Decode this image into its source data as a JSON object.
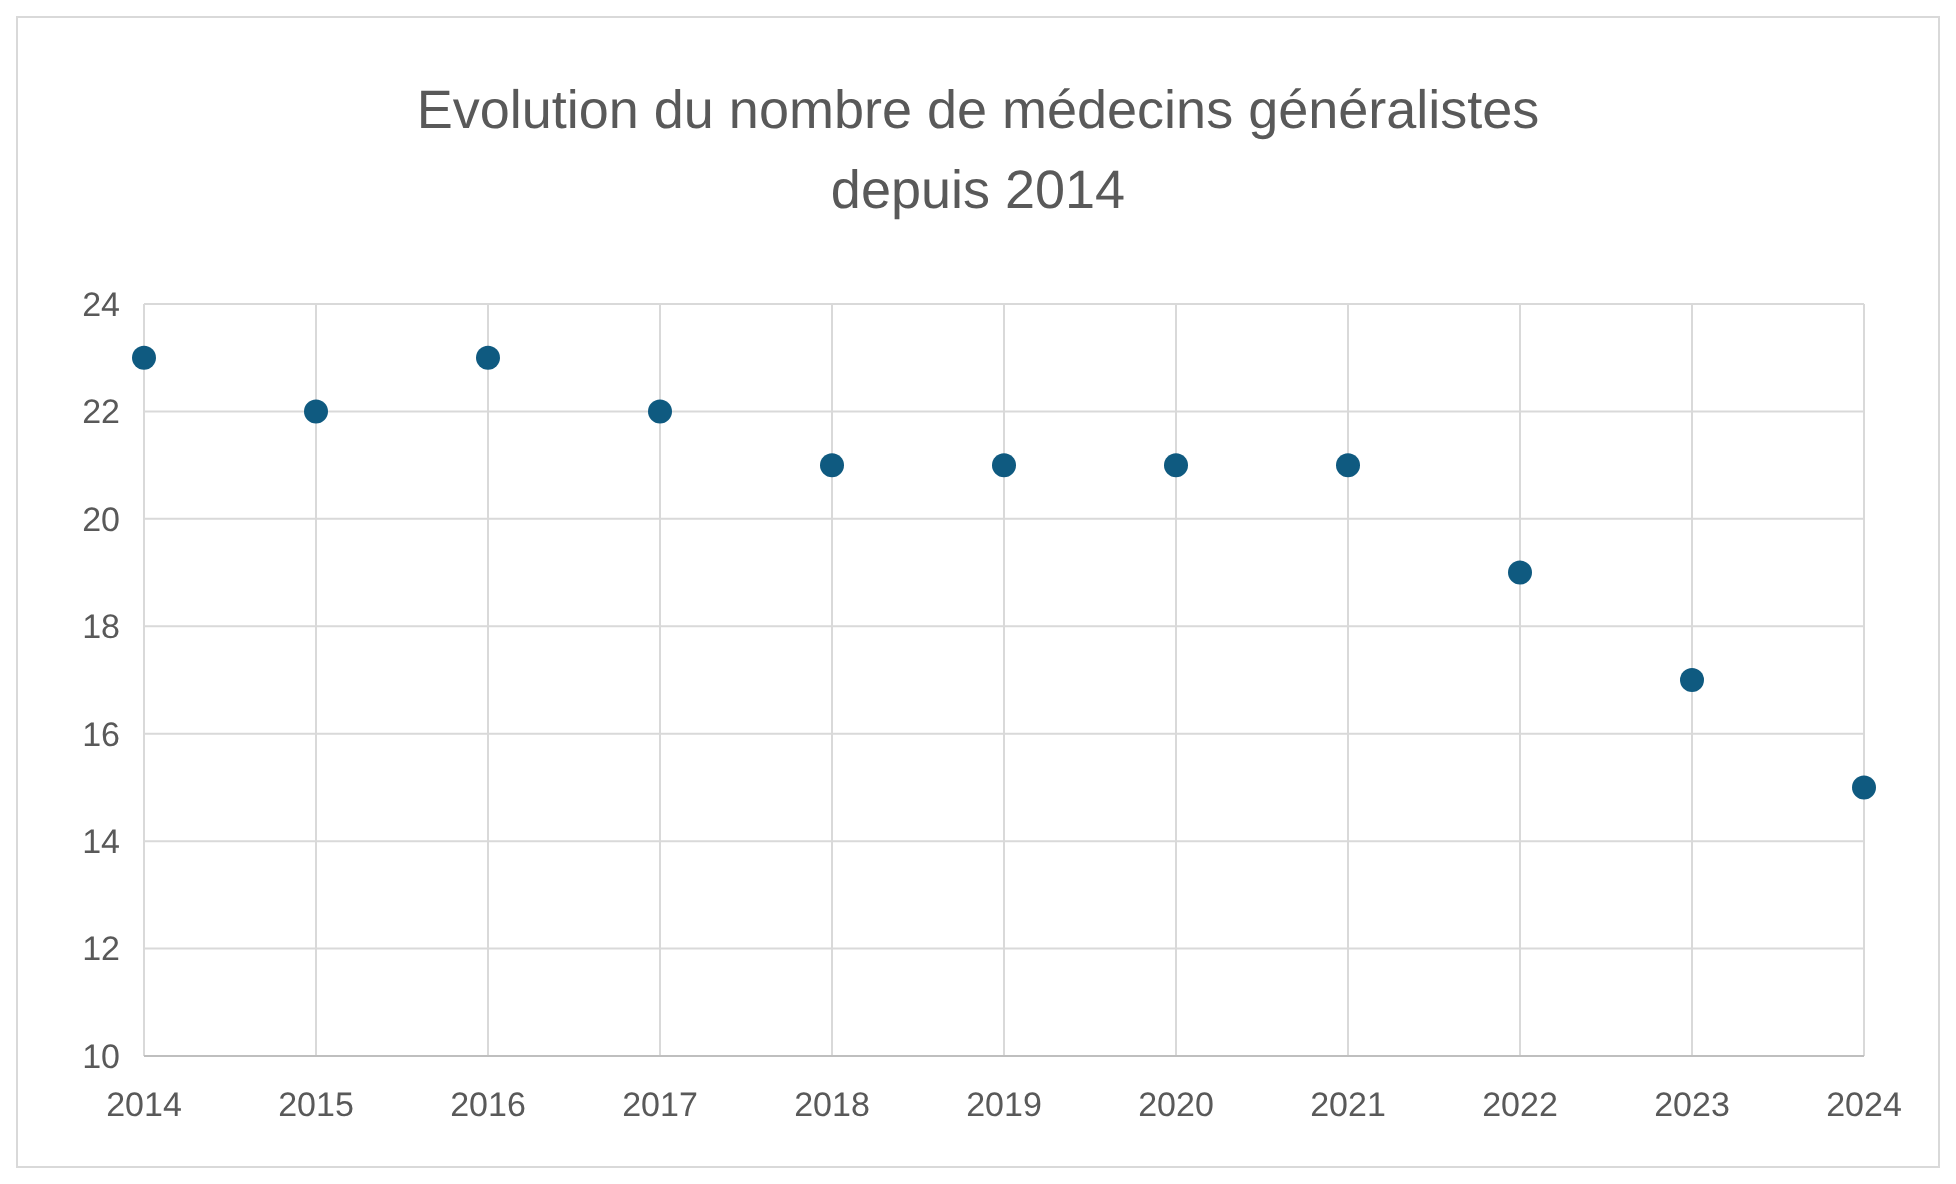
{
  "chart_data": {
    "type": "scatter",
    "title": "Evolution du nombre de médecins généralistes depuis 2014",
    "x": [
      2014,
      2015,
      2016,
      2017,
      2018,
      2019,
      2020,
      2021,
      2022,
      2023,
      2024
    ],
    "series": [
      {
        "color": "#0f5a80",
        "values": [
          23,
          22,
          23,
          22,
          21,
          21,
          21,
          21,
          19,
          17,
          15
        ]
      }
    ],
    "xlim": [
      2014,
      2024
    ],
    "xticks": [
      2014,
      2015,
      2016,
      2017,
      2018,
      2019,
      2020,
      2021,
      2022,
      2023,
      2024
    ],
    "ylim": [
      10,
      24
    ],
    "yticks": [
      10,
      12,
      14,
      16,
      18,
      20,
      22,
      24
    ],
    "grid": true,
    "marker": "circle"
  }
}
